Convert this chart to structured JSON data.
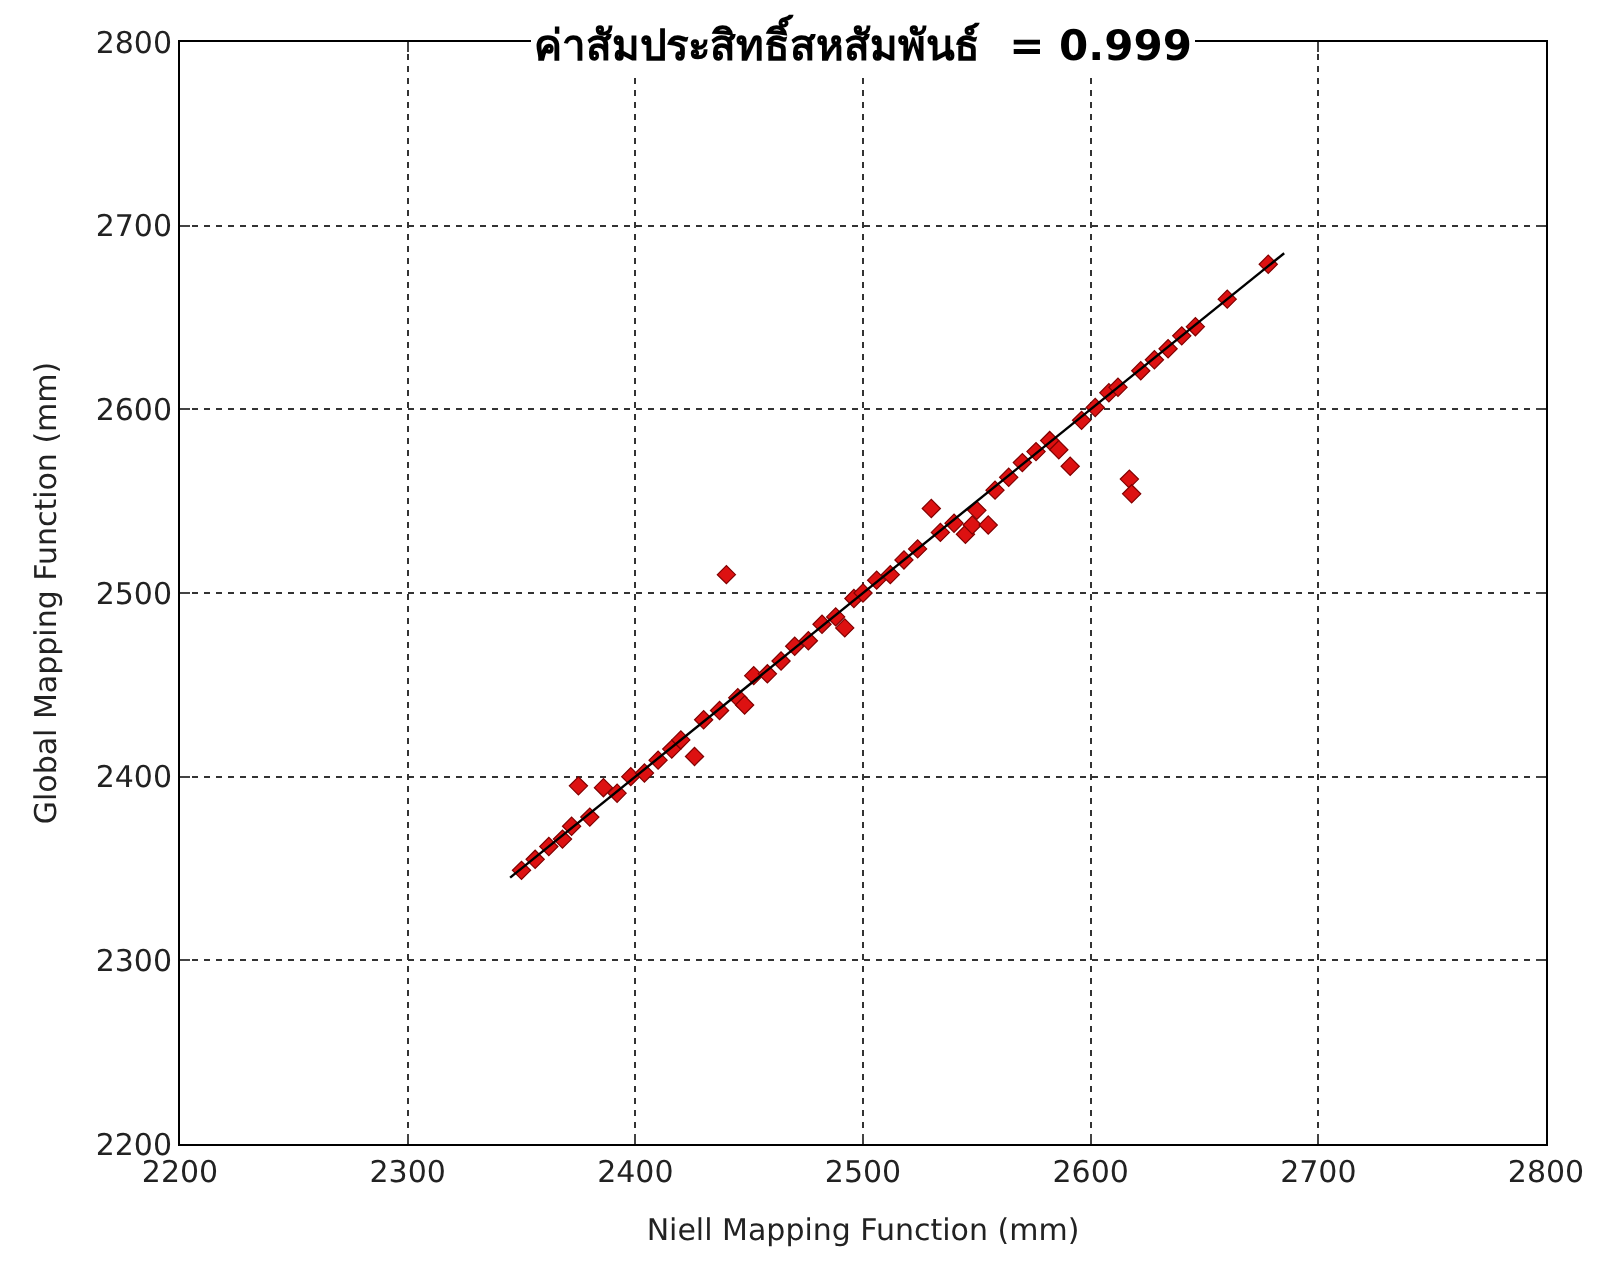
{
  "chart_data": {
    "type": "scatter",
    "xlabel": "Niell Mapping Function (mm)",
    "ylabel": "Global Mapping Function (mm)",
    "annotations": [
      "ค่าสัมประสิทธิ์สหสัมพันธ์  = 0.999"
    ],
    "xlim": [
      2200,
      2800
    ],
    "ylim": [
      2200,
      2800
    ],
    "xticks": [
      2200,
      2300,
      2400,
      2500,
      2600,
      2700,
      2800
    ],
    "yticks": [
      2200,
      2300,
      2400,
      2500,
      2600,
      2700,
      2800
    ],
    "grid": true,
    "series": [
      {
        "color": "#dd1111",
        "marker": "diamond",
        "x": [
          2350,
          2356,
          2362,
          2368,
          2372,
          2375,
          2380,
          2386,
          2392,
          2398,
          2404,
          2410,
          2416,
          2420,
          2426,
          2430,
          2437,
          2440,
          2445,
          2448,
          2452,
          2458,
          2464,
          2470,
          2476,
          2482,
          2488,
          2492,
          2496,
          2500,
          2506,
          2512,
          2518,
          2524,
          2530,
          2534,
          2540,
          2545,
          2548,
          2550,
          2555,
          2558,
          2564,
          2570,
          2576,
          2582,
          2586,
          2591,
          2596,
          2602,
          2608,
          2612,
          2617,
          2618,
          2622,
          2628,
          2634,
          2640,
          2646,
          2660,
          2678
        ],
        "values": [
          2349,
          2355,
          2362,
          2366,
          2373,
          2395,
          2378,
          2394,
          2391,
          2400,
          2402,
          2409,
          2415,
          2420,
          2411,
          2431,
          2436,
          2510,
          2443,
          2439,
          2455,
          2456,
          2463,
          2471,
          2474,
          2483,
          2487,
          2481,
          2497,
          2500,
          2507,
          2510,
          2518,
          2524,
          2546,
          2533,
          2538,
          2532,
          2537,
          2545,
          2537,
          2556,
          2563,
          2571,
          2577,
          2583,
          2578,
          2569,
          2594,
          2601,
          2609,
          2612,
          2562,
          2554,
          2621,
          2627,
          2633,
          2640,
          2645,
          2660,
          2679
        ]
      },
      {
        "type": "line",
        "color": "#000000",
        "line_style": "solid",
        "marker": "none",
        "x": [
          2345,
          2685
        ],
        "values": [
          2345,
          2685
        ]
      }
    ]
  }
}
